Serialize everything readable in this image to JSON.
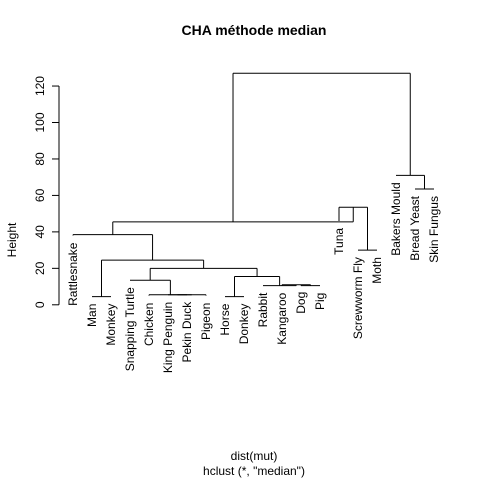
{
  "chart_data": {
    "type": "dendrogram",
    "title": "CHA méthode median",
    "xlabel": "dist(mut)",
    "sub": "hclust (*, \"median\")",
    "ylabel": "Height",
    "ylim": [
      0,
      130
    ],
    "yticks": [
      0,
      20,
      40,
      60,
      80,
      100,
      120
    ],
    "leaves": [
      "Rattlesnake",
      "Man",
      "Monkey",
      "Snapping Turtle",
      "Chicken",
      "King Penguin",
      "Pekin Duck",
      "Pigeon",
      "Horse",
      "Donkey",
      "Rabbit",
      "Kangaroo",
      "Dog",
      "Pig",
      "Tuna",
      "Screwworm Fly",
      "Moth",
      "Bakers Mould",
      "Bread Yeast",
      "Skin Fungus"
    ],
    "leaf_heights": [
      38,
      4.5,
      4.5,
      13.5,
      5,
      5.5,
      5.5,
      5,
      4.5,
      4.5,
      10.5,
      10.5,
      11,
      10.5,
      46,
      30,
      30,
      71,
      63.5,
      63.5
    ],
    "merges": [
      {
        "left": 2,
        "right": 3,
        "height": 4.5
      },
      {
        "left": 6,
        "right": 7,
        "height": 5.5
      },
      {
        "left": "m2",
        "right": 8,
        "height": 5.5
      },
      {
        "left": 5,
        "right": "m3",
        "height": 5.5
      },
      {
        "left": 9,
        "right": 10,
        "height": 4.5
      },
      {
        "left": 13,
        "right": 14,
        "height": 10.5
      },
      {
        "left": 12,
        "right": "m6",
        "height": 11
      },
      {
        "left": 11,
        "right": "m7",
        "height": 10.5
      },
      {
        "left": 4,
        "right": "m4",
        "height": 13.5
      },
      {
        "left": "m5",
        "right": "m8",
        "height": 15.5
      },
      {
        "left": "m9",
        "right": "m10",
        "height": 20
      },
      {
        "left": "m1",
        "right": "m11",
        "height": 24.5
      },
      {
        "left": 1,
        "right": "m12",
        "height": 38.5
      },
      {
        "left": 16,
        "right": 17,
        "height": 30
      },
      {
        "left": 15,
        "right": "m14",
        "height": 53.5
      },
      {
        "left": "m13",
        "right": "m15",
        "height": 45.5
      },
      {
        "left": 19,
        "right": 20,
        "height": 63.5
      },
      {
        "left": 18,
        "right": "m17",
        "height": 71
      },
      {
        "left": "m16",
        "right": "m18",
        "height": 127
      }
    ]
  }
}
